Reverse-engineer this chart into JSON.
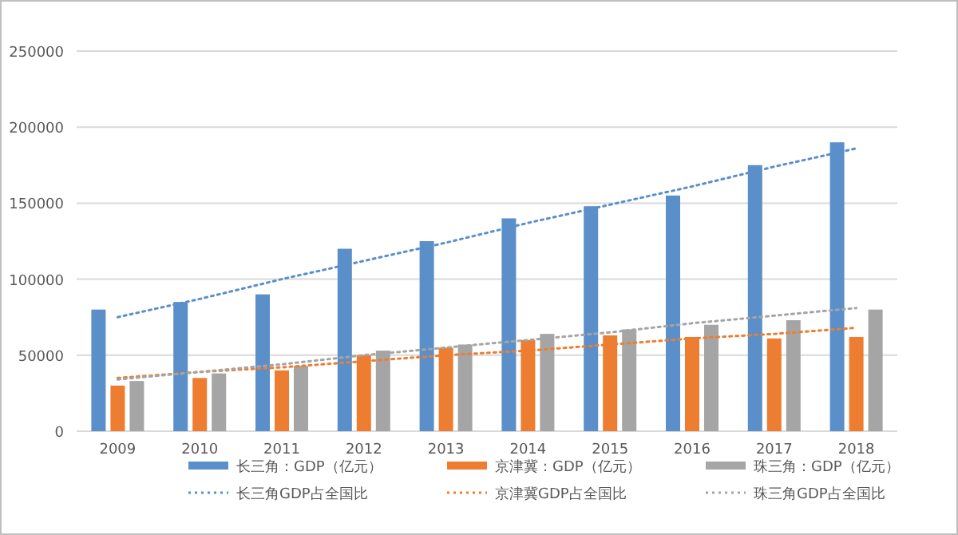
{
  "chart_data": {
    "type": "bar",
    "x": [
      2009,
      2010,
      2011,
      2012,
      2013,
      2014,
      2015,
      2016,
      2017,
      2018
    ],
    "xlim": [
      2008.5,
      2018.5
    ],
    "xticks": [
      2009,
      2010,
      2011,
      2012,
      2013,
      2014,
      2015,
      2016,
      2017,
      2018
    ],
    "ylim": [
      0,
      250000
    ],
    "yticks": [
      0,
      50000,
      100000,
      150000,
      200000,
      250000
    ],
    "grid": "y",
    "legend": "bottom",
    "series": [
      {
        "name": "长三角：GDP（亿元）",
        "color": "#5b8fc9",
        "values": [
          80000,
          85000,
          90000,
          120000,
          125000,
          140000,
          148000,
          155000,
          175000,
          190000
        ]
      },
      {
        "name": "京津冀：GDP（亿元）",
        "color": "#ed7d31",
        "values": [
          30000,
          35000,
          40000,
          50000,
          55000,
          60000,
          63000,
          62000,
          61000,
          62000
        ]
      },
      {
        "name": "珠三角：GDP（亿元）",
        "color": "#a5a5a5",
        "values": [
          33000,
          38000,
          43000,
          53000,
          57000,
          64000,
          67000,
          70000,
          73000,
          80000
        ]
      },
      {
        "name": "长三角GDP占全国比",
        "type": "line",
        "line_style": "dotted",
        "marker": "none",
        "color": "#5b8fc9",
        "values": [
          75000,
          87000,
          100000,
          112000,
          124000,
          137000,
          149000,
          161000,
          174000,
          186000
        ]
      },
      {
        "name": "京津冀GDP占全国比",
        "type": "line",
        "line_style": "dotted",
        "marker": "none",
        "color": "#ed7d31",
        "values": [
          35000,
          39000,
          42000,
          46000,
          50000,
          53000,
          57000,
          61000,
          64000,
          68000
        ]
      },
      {
        "name": "珠三角GDP占全国比",
        "type": "line",
        "line_style": "dotted",
        "marker": "none",
        "color": "#a5a5a5",
        "values": [
          34000,
          39000,
          44000,
          50000,
          55000,
          60000,
          65000,
          71000,
          76000,
          81000
        ]
      }
    ]
  }
}
